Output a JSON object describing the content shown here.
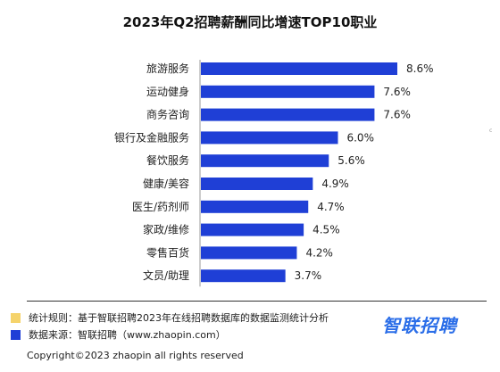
{
  "chart_data": {
    "type": "bar",
    "orientation": "horizontal",
    "title": "2023年Q2招聘薪酬同比增速TOP10职业",
    "categories": [
      "旅游服务",
      "运动健身",
      "商务咨询",
      "银行及金融服务",
      "餐饮服务",
      "健康/美容",
      "医生/药剂师",
      "家政/维修",
      "零售百货",
      "文员/助理"
    ],
    "values": [
      8.6,
      7.6,
      7.6,
      6.0,
      5.6,
      4.9,
      4.7,
      4.5,
      4.2,
      3.7
    ],
    "value_labels": [
      "8.6%",
      "7.6%",
      "7.6%",
      "6.0%",
      "5.6%",
      "4.9%",
      "4.7%",
      "4.5%",
      "4.2%",
      "3.7%"
    ],
    "xlim": [
      0,
      8.6
    ],
    "bar_color": "#1f3fd6",
    "grid": false
  },
  "notes": {
    "rule_label": "统计规则：基于智联招聘2023年在线招聘数据库的数据监测统计分析",
    "rule_color": "#f5d36b",
    "source_label": "数据来源：智联招聘（www.zhaopin.com）",
    "source_color": "#1f3fd6"
  },
  "logo_text": "智联招聘",
  "copyright": "Copyright©2023 zhaopin all rights reserved",
  "corner_mark": "c"
}
